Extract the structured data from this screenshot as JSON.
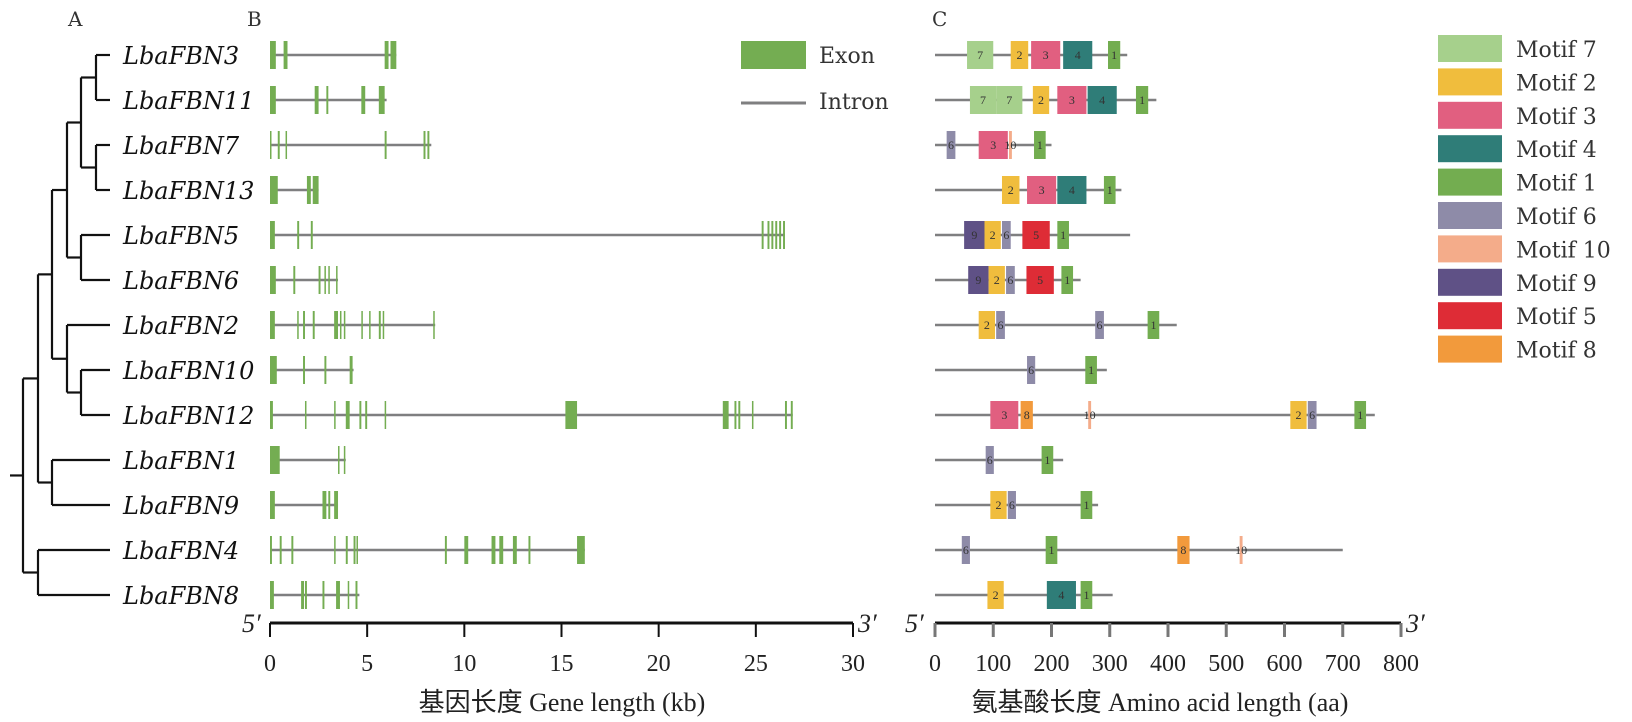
{
  "panels": {
    "a": "A",
    "b": "B",
    "c": "C"
  },
  "colors": {
    "exon": "#74ad52",
    "intron": "#7f7f80",
    "tree": "#111111",
    "motifs": {
      "7": "#a6d08c",
      "2": "#f0bd3d",
      "3": "#e15f80",
      "4": "#2f7d78",
      "1": "#73ad50",
      "6": "#8e8ba8",
      "10": "#f4ac8a",
      "9": "#5f5186",
      "5": "#de2c36",
      "8": "#f29a3c"
    }
  },
  "genes": [
    "LbaFBN3",
    "LbaFBN11",
    "LbaFBN7",
    "LbaFBN13",
    "LbaFBN5",
    "LbaFBN6",
    "LbaFBN2",
    "LbaFBN10",
    "LbaFBN12",
    "LbaFBN1",
    "LbaFBN9",
    "LbaFBN4",
    "LbaFBN8"
  ],
  "gene_legend": {
    "exon": "Exon",
    "intron": "Intron"
  },
  "motif_legend": [
    {
      "id": "7",
      "label": "Motif 7"
    },
    {
      "id": "2",
      "label": "Motif 2"
    },
    {
      "id": "3",
      "label": "Motif 3"
    },
    {
      "id": "4",
      "label": "Motif 4"
    },
    {
      "id": "1",
      "label": "Motif 1"
    },
    {
      "id": "6",
      "label": "Motif 6"
    },
    {
      "id": "10",
      "label": "Motif 10"
    },
    {
      "id": "9",
      "label": "Motif 9"
    },
    {
      "id": "5",
      "label": "Motif 5"
    },
    {
      "id": "8",
      "label": "Motif 8"
    }
  ],
  "gene_axis": {
    "title": "基因长度 Gene length (kb)",
    "min": 0,
    "max": 30,
    "ticks": [
      0,
      5,
      10,
      15,
      20,
      25,
      30
    ],
    "left_end": "5′",
    "right_end": "3′"
  },
  "aa_axis": {
    "title": "氨基酸长度 Amino acid length (aa)",
    "min": 0,
    "max": 800,
    "ticks": [
      0,
      100,
      200,
      300,
      400,
      500,
      600,
      700,
      800
    ],
    "left_end": "5′",
    "right_end": "3′"
  },
  "chart_data": {
    "type": "gene-structure",
    "tree": {
      "topology": "(((((LbaFBN3,LbaFBN11),(LbaFBN7,LbaFBN13)),(LbaFBN5,LbaFBN6)),(LbaFBN2,(LbaFBN10,LbaFBN12)),(LbaFBN1,LbaFBN9)),(LbaFBN4,LbaFBN8))"
    },
    "gene_structures": [
      {
        "gene": "LbaFBN3",
        "length_kb": 6.5,
        "exons_kb": [
          [
            0,
            0.3
          ],
          [
            0.7,
            0.9
          ],
          [
            5.9,
            6.1
          ],
          [
            6.2,
            6.5
          ]
        ]
      },
      {
        "gene": "LbaFBN11",
        "length_kb": 6.0,
        "exons_kb": [
          [
            0,
            0.3
          ],
          [
            2.3,
            2.5
          ],
          [
            2.9,
            3.0
          ],
          [
            4.7,
            4.9
          ],
          [
            5.6,
            5.9
          ]
        ]
      },
      {
        "gene": "LbaFBN7",
        "length_kb": 8.3,
        "exons_kb": [
          [
            0,
            0.05
          ],
          [
            0.4,
            0.5
          ],
          [
            0.8,
            0.85
          ],
          [
            5.9,
            6.0
          ],
          [
            7.9,
            8.0
          ],
          [
            8.1,
            8.2
          ]
        ]
      },
      {
        "gene": "LbaFBN13",
        "length_kb": 2.5,
        "exons_kb": [
          [
            0,
            0.4
          ],
          [
            1.9,
            2.1
          ],
          [
            2.2,
            2.5
          ]
        ]
      },
      {
        "gene": "LbaFBN5",
        "length_kb": 26.5,
        "exons_kb": [
          [
            0,
            0.25
          ],
          [
            1.4,
            1.5
          ],
          [
            2.1,
            2.2
          ],
          [
            25.3,
            25.4
          ],
          [
            25.6,
            25.7
          ],
          [
            25.8,
            25.9
          ],
          [
            26.0,
            26.1
          ],
          [
            26.2,
            26.3
          ],
          [
            26.4,
            26.5
          ]
        ]
      },
      {
        "gene": "LbaFBN6",
        "length_kb": 3.5,
        "exons_kb": [
          [
            0,
            0.3
          ],
          [
            1.2,
            1.3
          ],
          [
            2.5,
            2.6
          ],
          [
            2.8,
            2.85
          ],
          [
            3.0,
            3.05
          ],
          [
            3.4,
            3.45
          ]
        ]
      },
      {
        "gene": "LbaFBN2",
        "length_kb": 8.5,
        "exons_kb": [
          [
            0,
            0.25
          ],
          [
            1.4,
            1.45
          ],
          [
            1.7,
            1.8
          ],
          [
            2.2,
            2.3
          ],
          [
            3.3,
            3.5
          ],
          [
            3.6,
            3.65
          ],
          [
            3.8,
            3.85
          ],
          [
            4.7,
            4.75
          ],
          [
            5.1,
            5.15
          ],
          [
            5.6,
            5.7
          ],
          [
            5.8,
            5.85
          ],
          [
            8.4,
            8.45
          ]
        ]
      },
      {
        "gene": "LbaFBN10",
        "length_kb": 4.3,
        "exons_kb": [
          [
            0,
            0.35
          ],
          [
            1.7,
            1.8
          ],
          [
            2.8,
            2.9
          ],
          [
            4.1,
            4.25
          ]
        ]
      },
      {
        "gene": "LbaFBN12",
        "length_kb": 26.9,
        "exons_kb": [
          [
            0,
            0.15
          ],
          [
            1.8,
            1.85
          ],
          [
            3.3,
            3.35
          ],
          [
            3.9,
            4.1
          ],
          [
            4.6,
            4.7
          ],
          [
            4.9,
            5.0
          ],
          [
            5.9,
            5.95
          ],
          [
            15.2,
            15.8
          ],
          [
            23.3,
            23.6
          ],
          [
            23.9,
            24.0
          ],
          [
            24.1,
            24.2
          ],
          [
            24.8,
            24.85
          ],
          [
            26.5,
            26.6
          ],
          [
            26.8,
            26.9
          ]
        ]
      },
      {
        "gene": "LbaFBN1",
        "length_kb": 3.9,
        "exons_kb": [
          [
            0,
            0.5
          ],
          [
            3.5,
            3.55
          ],
          [
            3.8,
            3.85
          ]
        ]
      },
      {
        "gene": "LbaFBN9",
        "length_kb": 3.5,
        "exons_kb": [
          [
            0,
            0.25
          ],
          [
            2.7,
            2.9
          ],
          [
            3.0,
            3.1
          ],
          [
            3.3,
            3.5
          ]
        ]
      },
      {
        "gene": "LbaFBN4",
        "length_kb": 16.2,
        "exons_kb": [
          [
            0,
            0.1
          ],
          [
            0.5,
            0.6
          ],
          [
            1.1,
            1.2
          ],
          [
            3.3,
            3.35
          ],
          [
            3.9,
            4.0
          ],
          [
            4.3,
            4.4
          ],
          [
            4.45,
            4.5
          ],
          [
            9.0,
            9.1
          ],
          [
            10.0,
            10.2
          ],
          [
            11.4,
            11.6
          ],
          [
            11.8,
            12.0
          ],
          [
            12.5,
            12.7
          ],
          [
            13.3,
            13.4
          ],
          [
            15.8,
            16.2
          ]
        ]
      },
      {
        "gene": "LbaFBN8",
        "length_kb": 4.6,
        "exons_kb": [
          [
            0,
            0.2
          ],
          [
            1.6,
            1.75
          ],
          [
            1.8,
            1.9
          ],
          [
            2.7,
            2.8
          ],
          [
            3.4,
            3.6
          ],
          [
            4.0,
            4.05
          ],
          [
            4.4,
            4.5
          ]
        ]
      }
    ],
    "protein_motifs": [
      {
        "gene": "LbaFBN3",
        "length_aa": 330,
        "motifs": [
          {
            "id": "7",
            "start": 55,
            "end": 100
          },
          {
            "id": "2",
            "start": 130,
            "end": 160
          },
          {
            "id": "3",
            "start": 165,
            "end": 215
          },
          {
            "id": "4",
            "start": 220,
            "end": 270
          },
          {
            "id": "1",
            "start": 297,
            "end": 318
          }
        ]
      },
      {
        "gene": "LbaFBN11",
        "length_aa": 380,
        "motifs": [
          {
            "id": "7",
            "start": 60,
            "end": 105
          },
          {
            "id": "7",
            "start": 105,
            "end": 150
          },
          {
            "id": "2",
            "start": 168,
            "end": 196
          },
          {
            "id": "3",
            "start": 210,
            "end": 260
          },
          {
            "id": "4",
            "start": 262,
            "end": 312
          },
          {
            "id": "1",
            "start": 345,
            "end": 366
          }
        ]
      },
      {
        "gene": "LbaFBN7",
        "length_aa": 200,
        "motifs": [
          {
            "id": "6",
            "start": 20,
            "end": 35
          },
          {
            "id": "3",
            "start": 75,
            "end": 125
          },
          {
            "id": "10",
            "start": 127,
            "end": 132
          },
          {
            "id": "1",
            "start": 170,
            "end": 190
          }
        ]
      },
      {
        "gene": "LbaFBN13",
        "length_aa": 320,
        "motifs": [
          {
            "id": "2",
            "start": 115,
            "end": 145
          },
          {
            "id": "3",
            "start": 158,
            "end": 208
          },
          {
            "id": "4",
            "start": 210,
            "end": 260
          },
          {
            "id": "1",
            "start": 290,
            "end": 310
          }
        ]
      },
      {
        "gene": "LbaFBN5",
        "length_aa": 335,
        "motifs": [
          {
            "id": "9",
            "start": 50,
            "end": 85
          },
          {
            "id": "2",
            "start": 85,
            "end": 113
          },
          {
            "id": "6",
            "start": 115,
            "end": 130
          },
          {
            "id": "5",
            "start": 150,
            "end": 197
          },
          {
            "id": "1",
            "start": 210,
            "end": 230
          }
        ]
      },
      {
        "gene": "LbaFBN6",
        "length_aa": 250,
        "motifs": [
          {
            "id": "9",
            "start": 57,
            "end": 92
          },
          {
            "id": "2",
            "start": 92,
            "end": 120
          },
          {
            "id": "6",
            "start": 122,
            "end": 137
          },
          {
            "id": "5",
            "start": 157,
            "end": 204
          },
          {
            "id": "1",
            "start": 217,
            "end": 237
          }
        ]
      },
      {
        "gene": "LbaFBN2",
        "length_aa": 415,
        "motifs": [
          {
            "id": "2",
            "start": 75,
            "end": 103
          },
          {
            "id": "6",
            "start": 105,
            "end": 120
          },
          {
            "id": "6",
            "start": 275,
            "end": 290
          },
          {
            "id": "1",
            "start": 365,
            "end": 385
          }
        ]
      },
      {
        "gene": "LbaFBN10",
        "length_aa": 295,
        "motifs": [
          {
            "id": "6",
            "start": 158,
            "end": 172
          },
          {
            "id": "1",
            "start": 258,
            "end": 278
          }
        ]
      },
      {
        "gene": "LbaFBN12",
        "length_aa": 755,
        "motifs": [
          {
            "id": "3",
            "start": 95,
            "end": 143
          },
          {
            "id": "8",
            "start": 147,
            "end": 168
          },
          {
            "id": "10",
            "start": 263,
            "end": 268
          },
          {
            "id": "2",
            "start": 610,
            "end": 638
          },
          {
            "id": "6",
            "start": 640,
            "end": 655
          },
          {
            "id": "1",
            "start": 720,
            "end": 740
          }
        ]
      },
      {
        "gene": "LbaFBN1",
        "length_aa": 220,
        "motifs": [
          {
            "id": "6",
            "start": 87,
            "end": 101
          },
          {
            "id": "1",
            "start": 183,
            "end": 203
          }
        ]
      },
      {
        "gene": "LbaFBN9",
        "length_aa": 280,
        "motifs": [
          {
            "id": "2",
            "start": 95,
            "end": 123
          },
          {
            "id": "6",
            "start": 125,
            "end": 139
          },
          {
            "id": "1",
            "start": 250,
            "end": 270
          }
        ]
      },
      {
        "gene": "LbaFBN4",
        "length_aa": 700,
        "motifs": [
          {
            "id": "6",
            "start": 46,
            "end": 60
          },
          {
            "id": "1",
            "start": 190,
            "end": 210
          },
          {
            "id": "8",
            "start": 416,
            "end": 437
          },
          {
            "id": "10",
            "start": 523,
            "end": 528
          }
        ]
      },
      {
        "gene": "LbaFBN8",
        "length_aa": 305,
        "motifs": [
          {
            "id": "2",
            "start": 90,
            "end": 118
          },
          {
            "id": "4",
            "start": 192,
            "end": 242
          },
          {
            "id": "1",
            "start": 250,
            "end": 270
          }
        ]
      }
    ]
  }
}
